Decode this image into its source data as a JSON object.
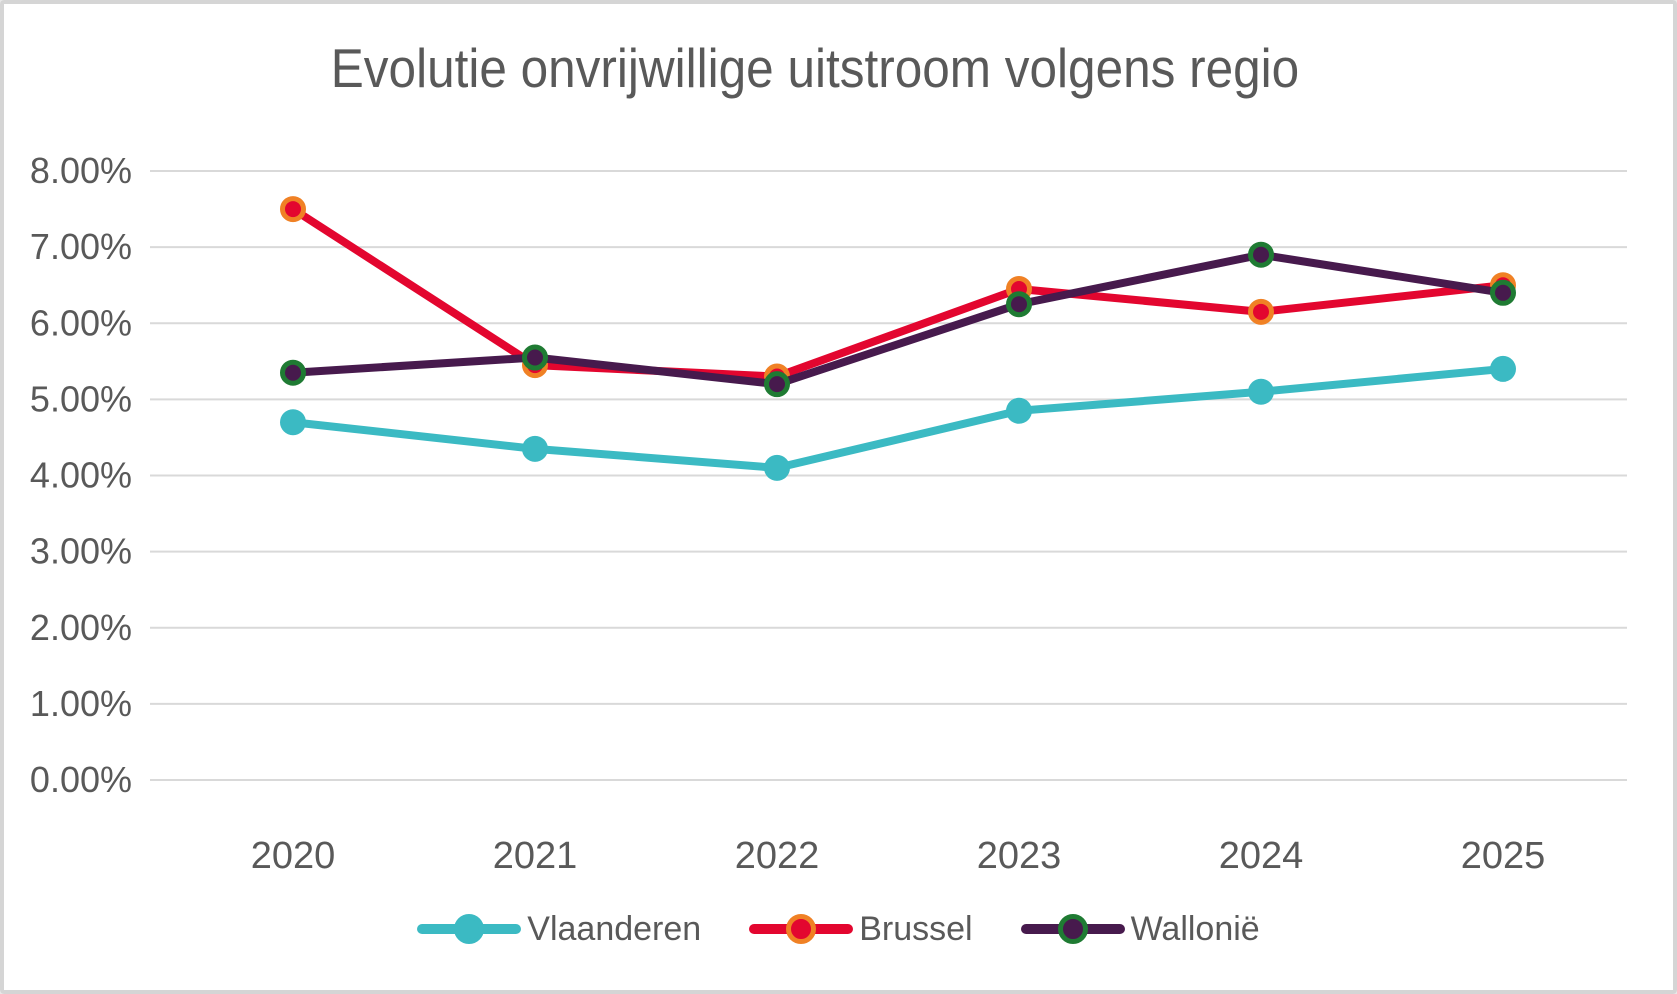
{
  "title": "Evolutie onvrijwillige uitstroom volgens regio",
  "chart_data": {
    "type": "line",
    "title": "Evolutie onvrijwillige uitstroom volgens regio",
    "categories": [
      "2020",
      "2021",
      "2022",
      "2023",
      "2024",
      "2025"
    ],
    "series": [
      {
        "name": "Vlaanderen",
        "color": "#3bbac3",
        "marker": {
          "fill": "#3bbac3",
          "ring": "#3bbac3"
        },
        "values": [
          4.7,
          4.35,
          4.1,
          4.85,
          5.1,
          5.4
        ]
      },
      {
        "name": "Brussel",
        "color": "#e3062f",
        "marker": {
          "fill": "#e3062f",
          "ring": "#f08125"
        },
        "values": [
          7.5,
          5.45,
          5.3,
          6.45,
          6.15,
          6.5
        ]
      },
      {
        "name": "Wallonië",
        "color": "#471a4d",
        "marker": {
          "fill": "#471a4d",
          "ring": "#1f7b33"
        },
        "values": [
          5.35,
          5.55,
          5.2,
          6.25,
          6.9,
          6.4
        ]
      }
    ],
    "xlabel": "",
    "ylabel": "",
    "ylim": [
      0,
      8
    ],
    "y_ticks": [
      "0.00%",
      "1.00%",
      "2.00%",
      "3.00%",
      "4.00%",
      "5.00%",
      "6.00%",
      "7.00%",
      "8.00%"
    ],
    "grid": true,
    "legend_position": "bottom",
    "text_color": "#595959",
    "grid_color": "#d9d9d9",
    "frame_border_color": "#d5d5d5",
    "background_color": "#ffffff"
  }
}
